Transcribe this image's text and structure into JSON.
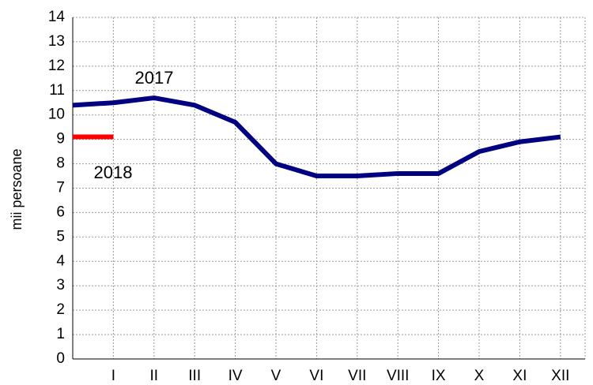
{
  "chart_data": {
    "type": "line",
    "y_label": "mii persoane",
    "categories": [
      null,
      "I",
      "II",
      "III",
      "IV",
      "V",
      "VI",
      "VII",
      "VIII",
      "IX",
      "X",
      "XI",
      "XII"
    ],
    "series": [
      {
        "name": "2017",
        "color": "#000080",
        "values": [
          10.4,
          10.5,
          10.7,
          10.4,
          9.7,
          8.0,
          7.5,
          7.5,
          7.6,
          7.6,
          8.5,
          8.9,
          9.1
        ]
      },
      {
        "name": "2018",
        "color": "#ff0000",
        "values": [
          9.1,
          9.1,
          null,
          null,
          null,
          null,
          null,
          null,
          null,
          null,
          null,
          null,
          null
        ]
      }
    ],
    "ylim": [
      0,
      14
    ],
    "yticks": [
      0,
      1,
      2,
      3,
      4,
      5,
      6,
      7,
      8,
      9,
      10,
      11,
      12,
      13,
      14
    ],
    "grid": true
  }
}
